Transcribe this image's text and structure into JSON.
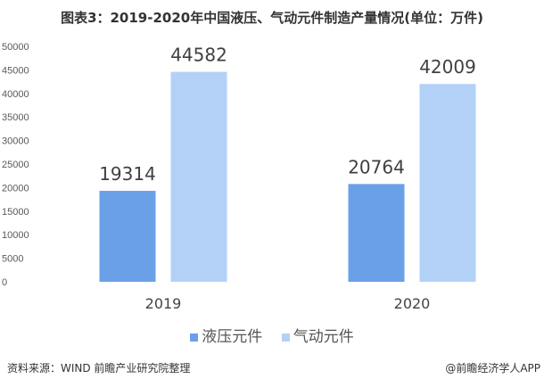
{
  "chart_data": {
    "type": "bar",
    "title": "图表3：2019-2020年中国液压、气动元件制造产量情况(单位：万件)",
    "categories": [
      "2019",
      "2020"
    ],
    "series": [
      {
        "name": "液压元件",
        "values": [
          19314,
          20764
        ],
        "color": "#6aa0e8"
      },
      {
        "name": "气动元件",
        "values": [
          44582,
          42009
        ],
        "color": "#b3d1f7"
      }
    ],
    "ylim": [
      0,
      50000
    ],
    "yticks": [
      0,
      5000,
      10000,
      15000,
      20000,
      25000,
      30000,
      35000,
      40000,
      45000,
      50000
    ],
    "grid": false,
    "legend": "bottom",
    "data_labels": true
  },
  "footer": {
    "source": "资料来源：WIND 前瞻产业研究院整理",
    "credit": "@前瞻经济学人APP"
  }
}
